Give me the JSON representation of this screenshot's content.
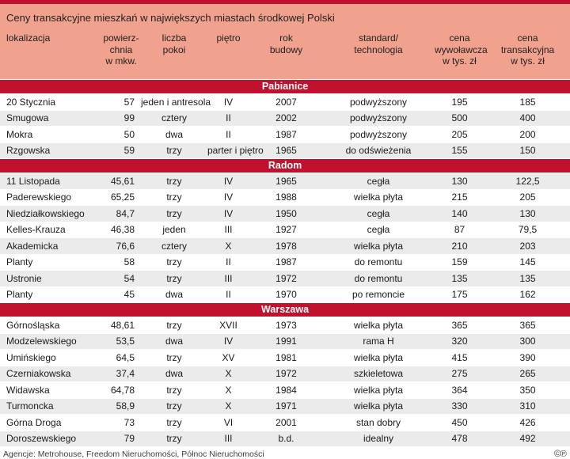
{
  "chart_data": {
    "type": "table",
    "title": "Ceny transakcyjne mieszkań w największych miastach środkowej Polski",
    "columns": [
      {
        "id": "lokalizacja",
        "lines": [
          "lokalizacja"
        ]
      },
      {
        "id": "powierzchnia",
        "lines": [
          "powierz-",
          "chnia",
          "w mkw."
        ]
      },
      {
        "id": "liczba-pokoi",
        "lines": [
          "liczba",
          "pokoi"
        ]
      },
      {
        "id": "pietro",
        "lines": [
          "piętro"
        ]
      },
      {
        "id": "rok-budowy",
        "lines": [
          "rok",
          "budowy"
        ]
      },
      {
        "id": "standard",
        "lines": [
          "standard/",
          "technologia"
        ]
      },
      {
        "id": "cena-wywolawcza",
        "lines": [
          "cena",
          "wywoławcza",
          "w tys. zł"
        ]
      },
      {
        "id": "cena-transakcyjna",
        "lines": [
          "cena",
          "transakcyjna",
          "w tys. zł"
        ]
      }
    ],
    "sections": [
      {
        "name": "Pabianice",
        "rows": [
          [
            "20 Stycznia",
            "57",
            "jeden i antresola",
            "IV",
            "2007",
            "podwyższony",
            "195",
            "185"
          ],
          [
            "Smugowa",
            "99",
            "cztery",
            "II",
            "2002",
            "podwyższony",
            "500",
            "400"
          ],
          [
            "Mokra",
            "50",
            "dwa",
            "II",
            "1987",
            "podwyższony",
            "205",
            "200"
          ],
          [
            "Rzgowska",
            "59",
            "trzy",
            "parter i piętro",
            "1965",
            "do odświeżenia",
            "155",
            "150"
          ]
        ]
      },
      {
        "name": "Radom",
        "rows": [
          [
            "11 Listopada",
            "45,61",
            "trzy",
            "IV",
            "1965",
            "cegła",
            "130",
            "122,5"
          ],
          [
            "Paderewskiego",
            "65,25",
            "trzy",
            "IV",
            "1988",
            "wielka płyta",
            "215",
            "205"
          ],
          [
            "Niedziałkowskiego",
            "84,7",
            "trzy",
            "IV",
            "1950",
            "cegła",
            "140",
            "130"
          ],
          [
            "Kelles-Krauza",
            "46,38",
            "jeden",
            "III",
            "1927",
            "cegła",
            "87",
            "79,5"
          ],
          [
            "Akademicka",
            "76,6",
            "cztery",
            "X",
            "1978",
            "wielka płyta",
            "210",
            "203"
          ],
          [
            "Planty",
            "58",
            "trzy",
            "II",
            "1987",
            "do remontu",
            "159",
            "145"
          ],
          [
            "Ustronie",
            "54",
            "trzy",
            "III",
            "1972",
            "do remontu",
            "135",
            "135"
          ],
          [
            "Planty",
            "45",
            "dwa",
            "II",
            "1970",
            "po remoncie",
            "175",
            "162"
          ]
        ]
      },
      {
        "name": "Warszawa",
        "rows": [
          [
            "Górnośląska",
            "48,61",
            "trzy",
            "XVII",
            "1973",
            "wielka płyta",
            "365",
            "365"
          ],
          [
            "Modzelewskiego",
            "53,5",
            "dwa",
            "IV",
            "1991",
            "rama H",
            "320",
            "300"
          ],
          [
            "Umińskiego",
            "64,5",
            "trzy",
            "XV",
            "1981",
            "wielka płyta",
            "415",
            "390"
          ],
          [
            "Czerniakowska",
            "37,4",
            "dwa",
            "X",
            "1972",
            "szkieletowa",
            "275",
            "265"
          ],
          [
            "Widawska",
            "64,78",
            "trzy",
            "X",
            "1984",
            "wielka płyta",
            "364",
            "350"
          ],
          [
            "Turmoncka",
            "58,9",
            "trzy",
            "X",
            "1971",
            "wielka płyta",
            "330",
            "310"
          ],
          [
            "Górna Droga",
            "73",
            "trzy",
            "VI",
            "2001",
            "stan dobry",
            "450",
            "426"
          ],
          [
            "Doroszewskiego",
            "79",
            "trzy",
            "III",
            "b.d.",
            "idealny",
            "478",
            "492"
          ]
        ]
      }
    ],
    "layout_hints": {
      "striped_rows": true,
      "section_bands": true
    }
  },
  "footer": {
    "source": "Agencje: Metrohouse, Freedom Nieruchomości, Północ Nieruchomości",
    "rights_symbols": "©℗"
  },
  "colors": {
    "accent_red": "#c0122f",
    "salmon_header": "#f0a28e",
    "stripe_gray": "#ebebeb",
    "text": "#1a1a1a",
    "band_text": "#ffffff"
  }
}
